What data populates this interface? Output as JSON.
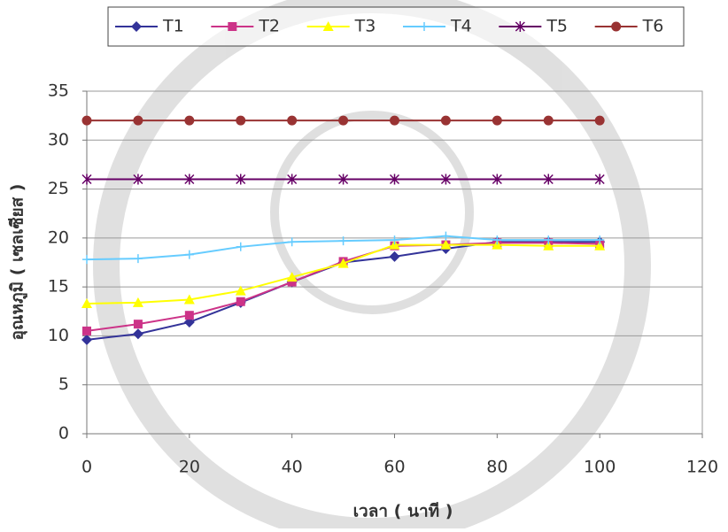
{
  "chart_data": {
    "type": "line",
    "x_label": "เวลา ( นาที )",
    "y_label": "อุณหภูมิ ( เซลเซียส )",
    "x": [
      0,
      10,
      20,
      30,
      40,
      50,
      60,
      70,
      80,
      90,
      100
    ],
    "series": [
      {
        "name": "T1",
        "color": "#333399",
        "marker": "diamond",
        "values": [
          9.6,
          10.2,
          11.4,
          13.4,
          15.5,
          17.5,
          18.1,
          18.9,
          19.6,
          19.6,
          19.6
        ]
      },
      {
        "name": "T2",
        "color": "#cc3388",
        "marker": "square",
        "values": [
          10.5,
          11.2,
          12.1,
          13.5,
          15.5,
          17.6,
          19.2,
          19.3,
          19.5,
          19.5,
          19.4
        ]
      },
      {
        "name": "T3",
        "color": "#ffff00",
        "marker": "triangle",
        "values": [
          13.3,
          13.4,
          13.7,
          14.6,
          16.0,
          17.4,
          19.3,
          19.3,
          19.3,
          19.2,
          19.2
        ]
      },
      {
        "name": "T4",
        "color": "#66ccff",
        "marker": "cross",
        "values": [
          17.8,
          17.9,
          18.3,
          19.1,
          19.6,
          19.7,
          19.8,
          20.2,
          19.8,
          19.8,
          19.8
        ]
      },
      {
        "name": "T5",
        "color": "#660066",
        "marker": "star",
        "values": [
          26,
          26,
          26,
          26,
          26,
          26,
          26,
          26,
          26,
          26,
          26
        ]
      },
      {
        "name": "T6",
        "color": "#993333",
        "marker": "circle",
        "values": [
          32,
          32,
          32,
          32,
          32,
          32,
          32,
          32,
          32,
          32,
          32
        ]
      }
    ],
    "xlim": [
      0,
      120
    ],
    "xticks": [
      0,
      20,
      40,
      60,
      80,
      100,
      120
    ],
    "ylim": [
      0,
      35
    ],
    "yticks": [
      0,
      5,
      10,
      15,
      20,
      25,
      30,
      35
    ],
    "grid": true,
    "legend_position": "top"
  }
}
